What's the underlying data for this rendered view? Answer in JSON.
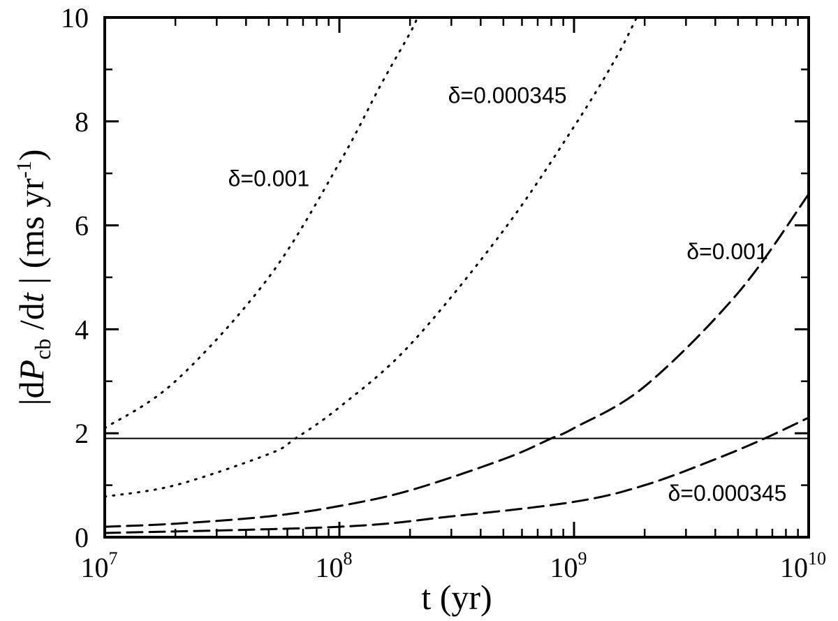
{
  "chart_data": {
    "type": "line",
    "title": "",
    "xlabel": "t  (yr)",
    "ylabel": {
      "bar_left": "|",
      "d1": "d",
      "P": "P",
      "sub": "cb",
      "slash": " /d",
      "t": "t",
      "bar_right": " |",
      "units": " (ms yr",
      "sup": "-1",
      "close": ")"
    },
    "x_scale": "log",
    "xlim": [
      10000000,
      10000000000
    ],
    "ylim": [
      0,
      10
    ],
    "grid": false,
    "x_ticks": [
      {
        "base": "10",
        "exp": "7",
        "value": 10000000
      },
      {
        "base": "10",
        "exp": "8",
        "value": 100000000
      },
      {
        "base": "10",
        "exp": "9",
        "value": 1000000000
      },
      {
        "base": "10",
        "exp": "10",
        "value": 10000000000
      }
    ],
    "y_ticks": [
      "0",
      "2",
      "4",
      "6",
      "8",
      "10"
    ],
    "y_tick_values": [
      0,
      2,
      4,
      6,
      8,
      10
    ],
    "series": [
      {
        "style": "dotted",
        "x": [
          10000000,
          20000000,
          50000000,
          100000000,
          150000000,
          200000000,
          215000000
        ],
        "y": [
          2.1,
          3.0,
          5.0,
          7.2,
          8.7,
          9.7,
          10.0
        ]
      },
      {
        "style": "dotted",
        "x": [
          10000000,
          20000000,
          50000000,
          65000000,
          100000000,
          200000000,
          500000000,
          1000000000,
          1500000000,
          1850000000
        ],
        "y": [
          0.78,
          1.0,
          1.6,
          1.9,
          2.5,
          3.7,
          5.9,
          7.9,
          9.2,
          10.0
        ]
      },
      {
        "style": "dashed",
        "x": [
          10000000,
          20000000,
          50000000,
          100000000,
          200000000,
          500000000,
          800000000,
          1000000000,
          2000000000,
          5000000000,
          10000000000
        ],
        "y": [
          0.2,
          0.26,
          0.4,
          0.6,
          0.9,
          1.5,
          1.9,
          2.1,
          2.9,
          4.7,
          6.6
        ]
      },
      {
        "style": "dashed",
        "x": [
          10000000,
          100000000,
          300000000,
          1000000000,
          2000000000,
          4000000000,
          6500000000,
          10000000000
        ],
        "y": [
          0.08,
          0.2,
          0.4,
          0.68,
          1.0,
          1.5,
          1.9,
          2.3
        ]
      }
    ],
    "reference_line": {
      "y": 1.9,
      "style": "solid"
    },
    "annotations": [
      {
        "text": "δ=0.001",
        "x": 50000000,
        "y": 6.9
      },
      {
        "text": "δ=0.000345",
        "x": 520000000,
        "y": 8.5
      },
      {
        "text": "δ=0.001",
        "x": 4500000000,
        "y": 5.5
      },
      {
        "text": "δ=0.000345",
        "x": 4500000000,
        "y": 0.85
      }
    ]
  }
}
